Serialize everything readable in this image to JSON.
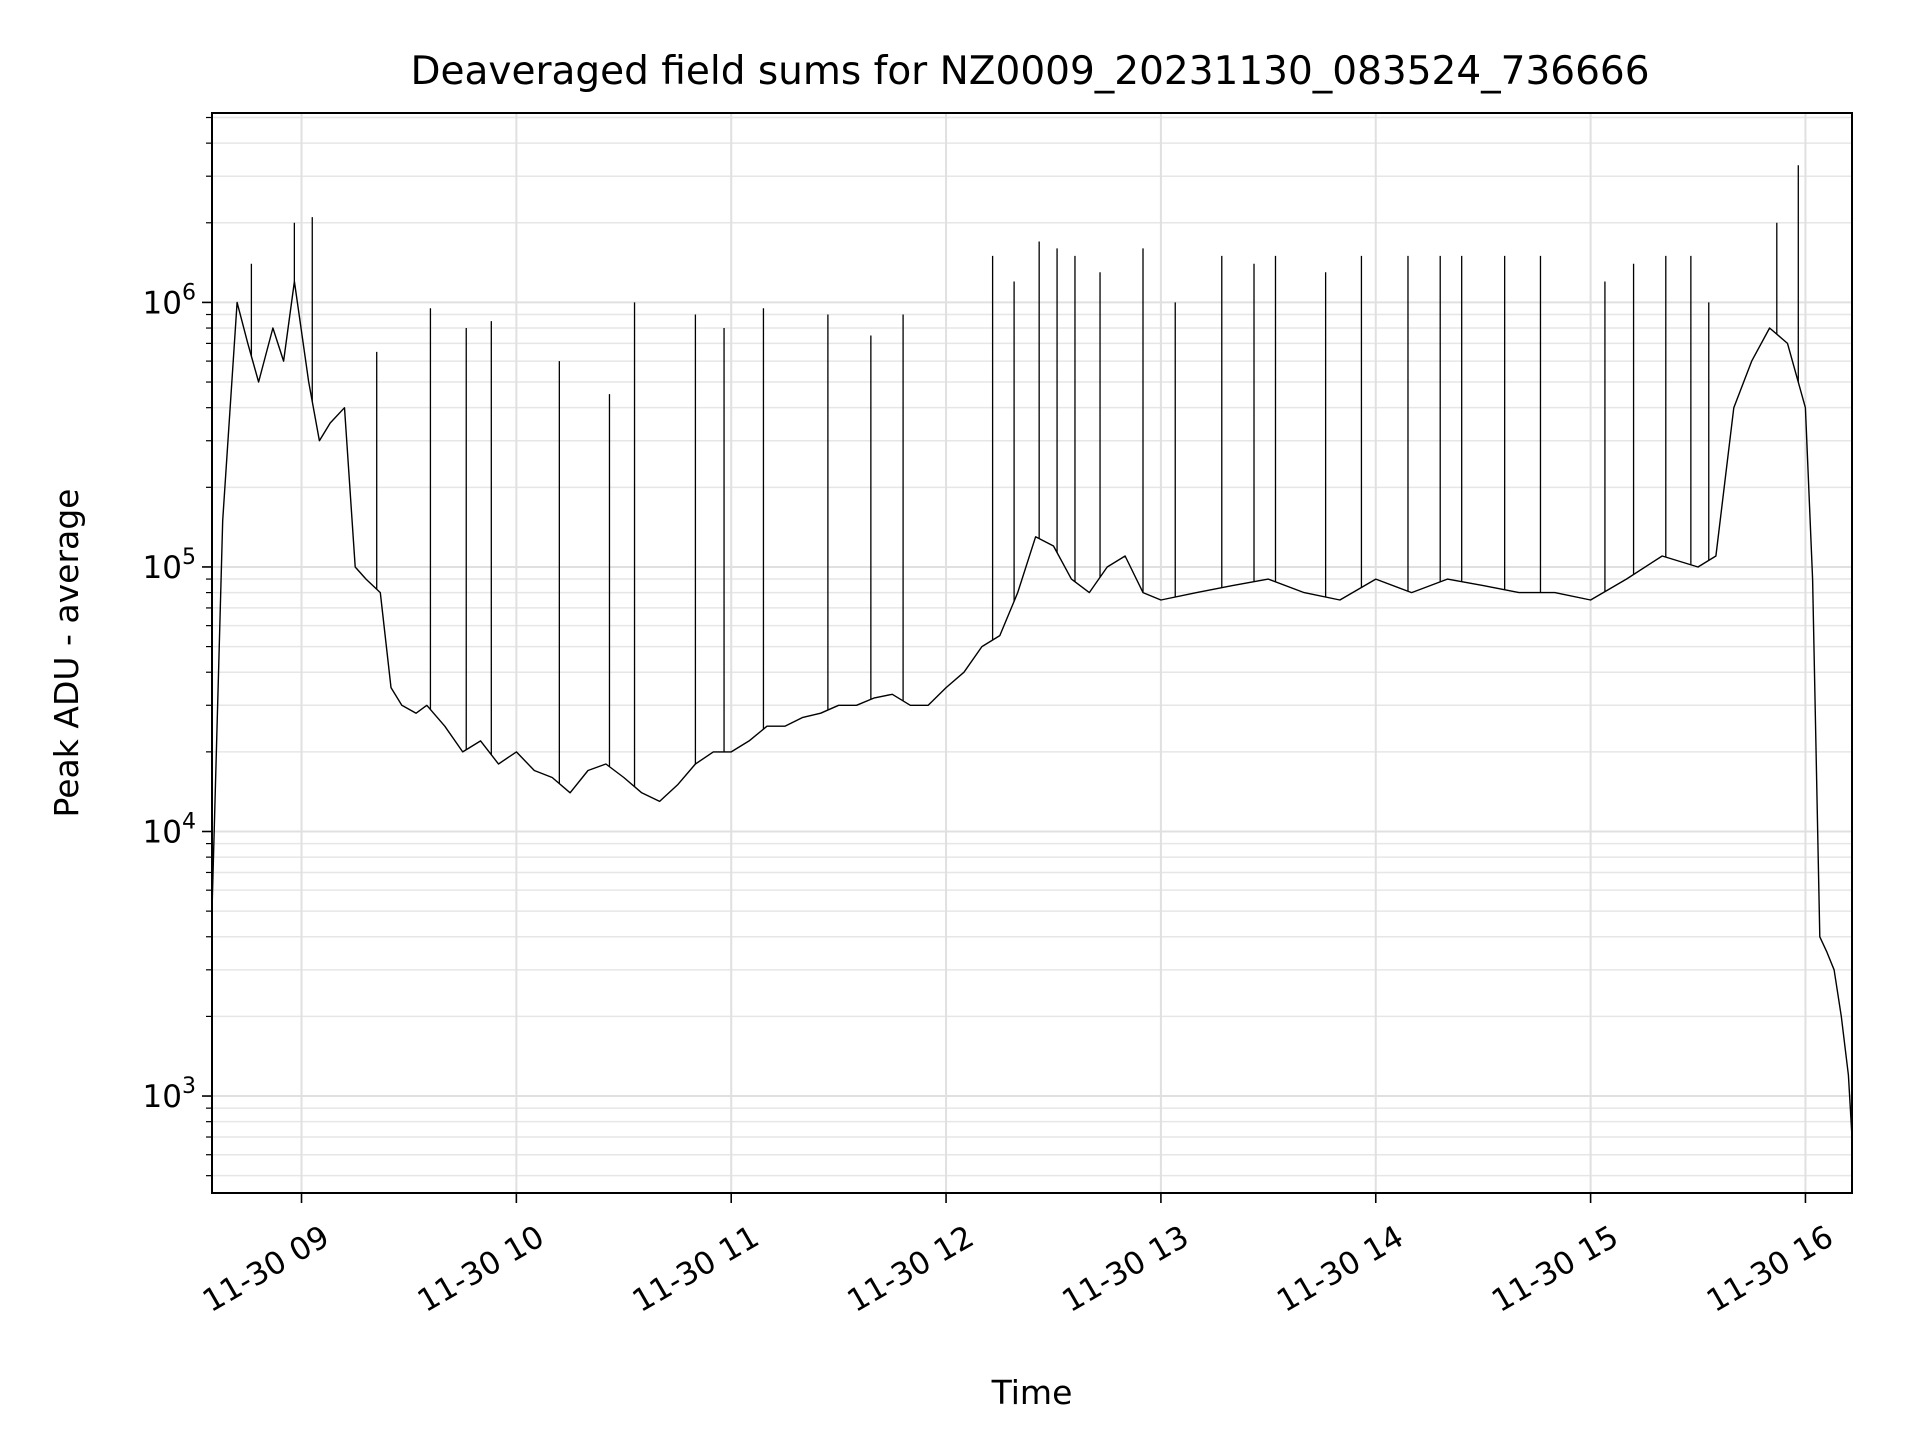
{
  "chart_data": {
    "type": "line",
    "title": "Deaveraged field sums for NZ0009_20231130_083524_736666",
    "xlabel": "Time",
    "ylabel": "Peak ADU - average",
    "x_range": [
      "2023-11-30 08:35",
      "2023-11-30 16:13"
    ],
    "y_scale": "log",
    "ylim": [
      430,
      5200000
    ],
    "grid": "major and minor",
    "x_ticks": [
      {
        "time": "2023-11-30 09:00",
        "label": "11-30 09"
      },
      {
        "time": "2023-11-30 10:00",
        "label": "11-30 10"
      },
      {
        "time": "2023-11-30 11:00",
        "label": "11-30 11"
      },
      {
        "time": "2023-11-30 12:00",
        "label": "11-30 12"
      },
      {
        "time": "2023-11-30 13:00",
        "label": "11-30 13"
      },
      {
        "time": "2023-11-30 14:00",
        "label": "11-30 14"
      },
      {
        "time": "2023-11-30 15:00",
        "label": "11-30 15"
      },
      {
        "time": "2023-11-30 16:00",
        "label": "11-30 16"
      }
    ],
    "y_ticks": [
      {
        "value": 1000,
        "base": "10",
        "exp": "3"
      },
      {
        "value": 10000,
        "base": "10",
        "exp": "4"
      },
      {
        "value": 100000,
        "base": "10",
        "exp": "5"
      },
      {
        "value": 1000000,
        "base": "10",
        "exp": "6"
      }
    ],
    "series": [
      {
        "color": "#000000",
        "x": [
          "2023-11-30 08:35",
          "2023-11-30 08:38",
          "2023-11-30 08:42",
          "2023-11-30 08:45",
          "2023-11-30 08:48",
          "2023-11-30 08:52",
          "2023-11-30 08:55",
          "2023-11-30 08:58",
          "2023-11-30 09:02",
          "2023-11-30 09:05",
          "2023-11-30 09:08",
          "2023-11-30 09:12",
          "2023-11-30 09:15",
          "2023-11-30 09:18",
          "2023-11-30 09:22",
          "2023-11-30 09:25",
          "2023-11-30 09:28",
          "2023-11-30 09:32",
          "2023-11-30 09:35",
          "2023-11-30 09:40",
          "2023-11-30 09:45",
          "2023-11-30 09:50",
          "2023-11-30 09:55",
          "2023-11-30 10:00",
          "2023-11-30 10:05",
          "2023-11-30 10:10",
          "2023-11-30 10:15",
          "2023-11-30 10:20",
          "2023-11-30 10:25",
          "2023-11-30 10:30",
          "2023-11-30 10:35",
          "2023-11-30 10:40",
          "2023-11-30 10:45",
          "2023-11-30 10:50",
          "2023-11-30 10:55",
          "2023-11-30 11:00",
          "2023-11-30 11:05",
          "2023-11-30 11:10",
          "2023-11-30 11:15",
          "2023-11-30 11:20",
          "2023-11-30 11:25",
          "2023-11-30 11:30",
          "2023-11-30 11:35",
          "2023-11-30 11:40",
          "2023-11-30 11:45",
          "2023-11-30 11:50",
          "2023-11-30 11:55",
          "2023-11-30 12:00",
          "2023-11-30 12:05",
          "2023-11-30 12:10",
          "2023-11-30 12:15",
          "2023-11-30 12:20",
          "2023-11-30 12:25",
          "2023-11-30 12:30",
          "2023-11-30 12:35",
          "2023-11-30 12:40",
          "2023-11-30 12:45",
          "2023-11-30 12:50",
          "2023-11-30 12:55",
          "2023-11-30 13:00",
          "2023-11-30 13:10",
          "2023-11-30 13:20",
          "2023-11-30 13:30",
          "2023-11-30 13:40",
          "2023-11-30 13:50",
          "2023-11-30 14:00",
          "2023-11-30 14:10",
          "2023-11-30 14:20",
          "2023-11-30 14:30",
          "2023-11-30 14:40",
          "2023-11-30 14:50",
          "2023-11-30 15:00",
          "2023-11-30 15:10",
          "2023-11-30 15:20",
          "2023-11-30 15:30",
          "2023-11-30 15:35",
          "2023-11-30 15:40",
          "2023-11-30 15:45",
          "2023-11-30 15:50",
          "2023-11-30 15:55",
          "2023-11-30 16:00",
          "2023-11-30 16:02",
          "2023-11-30 16:04",
          "2023-11-30 16:06",
          "2023-11-30 16:08",
          "2023-11-30 16:10",
          "2023-11-30 16:12",
          "2023-11-30 16:13"
        ],
        "y": [
          5000,
          150000,
          1000000,
          700000,
          500000,
          800000,
          600000,
          1200000,
          500000,
          300000,
          350000,
          400000,
          100000,
          90000,
          80000,
          35000,
          30000,
          28000,
          30000,
          25000,
          20000,
          22000,
          18000,
          20000,
          17000,
          16000,
          14000,
          17000,
          18000,
          16000,
          14000,
          13000,
          15000,
          18000,
          20000,
          20000,
          22000,
          25000,
          25000,
          27000,
          28000,
          30000,
          30000,
          32000,
          33000,
          30000,
          30000,
          35000,
          40000,
          50000,
          55000,
          80000,
          130000,
          120000,
          90000,
          80000,
          100000,
          110000,
          80000,
          75000,
          80000,
          85000,
          90000,
          80000,
          75000,
          90000,
          80000,
          90000,
          85000,
          80000,
          80000,
          75000,
          90000,
          110000,
          100000,
          110000,
          400000,
          600000,
          800000,
          700000,
          400000,
          90000,
          4000,
          3500,
          3000,
          2000,
          1200,
          700
        ]
      }
    ],
    "spikes": {
      "x": [
        "2023-11-30 08:46",
        "2023-11-30 08:58",
        "2023-11-30 09:03",
        "2023-11-30 09:21",
        "2023-11-30 09:36",
        "2023-11-30 09:46",
        "2023-11-30 09:53",
        "2023-11-30 10:12",
        "2023-11-30 10:26",
        "2023-11-30 10:33",
        "2023-11-30 10:50",
        "2023-11-30 10:58",
        "2023-11-30 11:09",
        "2023-11-30 11:27",
        "2023-11-30 11:39",
        "2023-11-30 11:48",
        "2023-11-30 12:13",
        "2023-11-30 12:19",
        "2023-11-30 12:26",
        "2023-11-30 12:31",
        "2023-11-30 12:36",
        "2023-11-30 12:43",
        "2023-11-30 12:55",
        "2023-11-30 13:04",
        "2023-11-30 13:17",
        "2023-11-30 13:26",
        "2023-11-30 13:32",
        "2023-11-30 13:46",
        "2023-11-30 13:56",
        "2023-11-30 14:09",
        "2023-11-30 14:18",
        "2023-11-30 14:24",
        "2023-11-30 14:36",
        "2023-11-30 14:46",
        "2023-11-30 15:04",
        "2023-11-30 15:12",
        "2023-11-30 15:21",
        "2023-11-30 15:28",
        "2023-11-30 15:33",
        "2023-11-30 15:52",
        "2023-11-30 15:58"
      ],
      "y": [
        1400000,
        2000000,
        2100000,
        650000,
        950000,
        800000,
        850000,
        600000,
        450000,
        1000000,
        900000,
        800000,
        950000,
        900000,
        750000,
        900000,
        1500000,
        1200000,
        1700000,
        1600000,
        1500000,
        1300000,
        1600000,
        1000000,
        1500000,
        1400000,
        1500000,
        1300000,
        1500000,
        1500000,
        1500000,
        1500000,
        1500000,
        1500000,
        1200000,
        1400000,
        1500000,
        1500000,
        1000000,
        2000000,
        3300000
      ]
    }
  }
}
